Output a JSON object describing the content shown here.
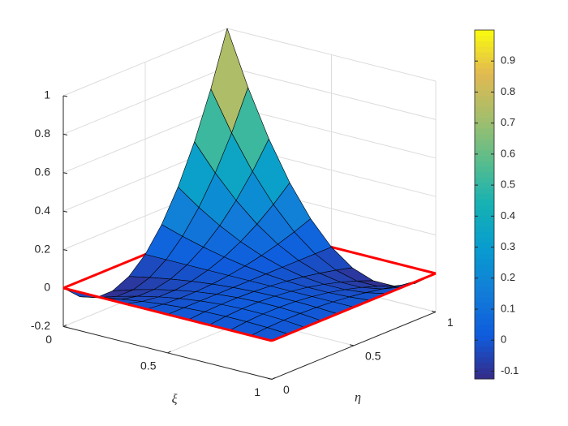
{
  "chart_data": {
    "type": "surface",
    "x_label": "ξ",
    "y_label": "η",
    "x": [
      0,
      0.1,
      0.2,
      0.3,
      0.4,
      0.5,
      0.6,
      0.7,
      0.8,
      0.9,
      1
    ],
    "y": [
      0,
      0.1,
      0.2,
      0.3,
      0.4,
      0.5,
      0.6,
      0.7,
      0.8,
      0.9,
      1
    ],
    "z": [
      [
        0,
        -0.08,
        -0.12,
        -0.12,
        -0.08,
        0,
        0.12,
        0.28,
        0.48,
        0.72,
        1
      ],
      [
        0,
        -0.0576,
        -0.0864,
        -0.0864,
        -0.0576,
        0,
        0.0864,
        0.2016,
        0.3456,
        0.5184,
        0.72
      ],
      [
        0,
        -0.0384,
        -0.0576,
        -0.0576,
        -0.0384,
        0,
        0.0576,
        0.1344,
        0.2304,
        0.3456,
        0.48
      ],
      [
        0,
        -0.0224,
        -0.0336,
        -0.0336,
        -0.0224,
        0,
        0.0336,
        0.0784,
        0.1344,
        0.2016,
        0.28
      ],
      [
        0,
        -0.0096,
        -0.0144,
        -0.0144,
        -0.0096,
        0,
        0.0144,
        0.0336,
        0.0576,
        0.0864,
        0.12
      ],
      [
        0,
        0,
        0,
        0,
        0,
        0,
        0,
        0,
        0,
        0,
        0
      ],
      [
        0,
        0.0064,
        0.0096,
        0.0096,
        0.0064,
        0,
        -0.0096,
        -0.0224,
        -0.0384,
        -0.0576,
        -0.08
      ],
      [
        0,
        0.0096,
        0.0144,
        0.0144,
        0.0096,
        0,
        -0.0144,
        -0.0336,
        -0.0576,
        -0.0864,
        -0.12
      ],
      [
        0,
        0.0096,
        0.0144,
        0.0144,
        0.0096,
        0,
        -0.0144,
        -0.0336,
        -0.0576,
        -0.0864,
        -0.12
      ],
      [
        0,
        0.0064,
        0.0096,
        0.0096,
        0.0064,
        0,
        -0.0096,
        -0.0224,
        -0.0384,
        -0.0576,
        -0.08
      ],
      [
        0,
        0,
        0,
        0,
        0,
        0,
        0,
        0,
        0,
        0,
        0
      ]
    ],
    "xlim": [
      0,
      1
    ],
    "xticks": [
      0,
      0.5,
      1
    ],
    "ylim": [
      0,
      1
    ],
    "yticks": [
      0,
      0.5,
      1
    ],
    "zlim": [
      -0.2,
      1
    ],
    "zticks": [
      -0.2,
      0,
      0.2,
      0.4,
      0.6,
      0.8,
      1
    ],
    "grid": true,
    "colormap": "parula",
    "clim": [
      -0.125,
      1
    ],
    "colorbar_ticks": [
      -0.1,
      0,
      0.1,
      0.2,
      0.3,
      0.4,
      0.5,
      0.6,
      0.7,
      0.8,
      0.9
    ],
    "boundary": {
      "color": "#ff0000",
      "x": [
        0,
        1,
        1,
        0,
        0
      ],
      "y": [
        0,
        0,
        1,
        1,
        0
      ],
      "z": [
        0,
        0,
        0,
        0,
        0
      ]
    }
  }
}
